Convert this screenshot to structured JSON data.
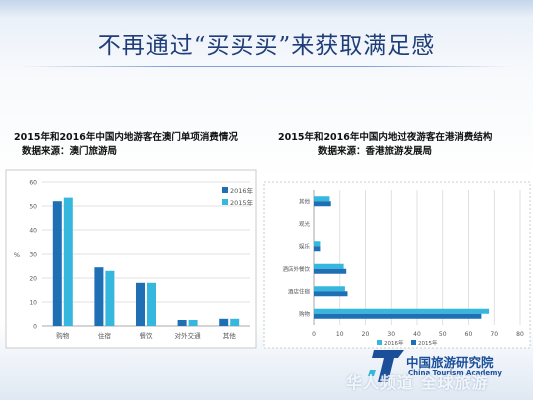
{
  "slide": {
    "title": "不再通过“买买买”来获取满足感"
  },
  "colors": {
    "title": "#1f3d78",
    "series_2016": "#1f6fb5",
    "series_2015": "#36b7dd",
    "grid": "#d9d9d9"
  },
  "chart_data": [
    {
      "type": "bar",
      "title": "2015年和2016年中国内地游客在澳门单项消费情况",
      "subtitle": "数据来源：澳门旅游局",
      "xlabel": "",
      "ylabel": "%",
      "categories": [
        "购物",
        "住宿",
        "餐饮",
        "对外交通",
        "其他"
      ],
      "yticks": [
        "0",
        "10",
        "20",
        "30",
        "40",
        "50",
        "60"
      ],
      "ylim": [
        0,
        60
      ],
      "series": [
        {
          "name": "2016年",
          "values": [
            52,
            24.5,
            18,
            2.5,
            3
          ]
        },
        {
          "name": "2015年",
          "values": [
            53.5,
            23,
            18,
            2.5,
            3
          ]
        }
      ],
      "legend": "right",
      "grid": true
    },
    {
      "type": "bar",
      "orientation": "horizontal",
      "title": "2015年和2016年中国内地过夜游客在港消费结构",
      "subtitle": "数据来源：香港旅游发展局",
      "xlabel": "",
      "ylabel": "",
      "categories": [
        "购物",
        "酒店住宿",
        "酒店外餐饮",
        "娱乐",
        "观光",
        "其他"
      ],
      "xticks": [
        "0",
        "10",
        "20",
        "30",
        "40",
        "50",
        "60",
        "70",
        "80"
      ],
      "xlim": [
        0,
        80
      ],
      "series": [
        {
          "name": "2016年",
          "values": [
            68,
            12,
            11.5,
            2.5,
            0,
            6
          ]
        },
        {
          "name": "2015年",
          "values": [
            65,
            13,
            12.5,
            2.5,
            0,
            6.5
          ]
        }
      ],
      "legend": "bottom",
      "grid": true
    }
  ],
  "logo": {
    "name": "中国旅游研究院",
    "english": "China Tourism Academy"
  },
  "watermark": {
    "text": "华人频道 全球旅游"
  }
}
